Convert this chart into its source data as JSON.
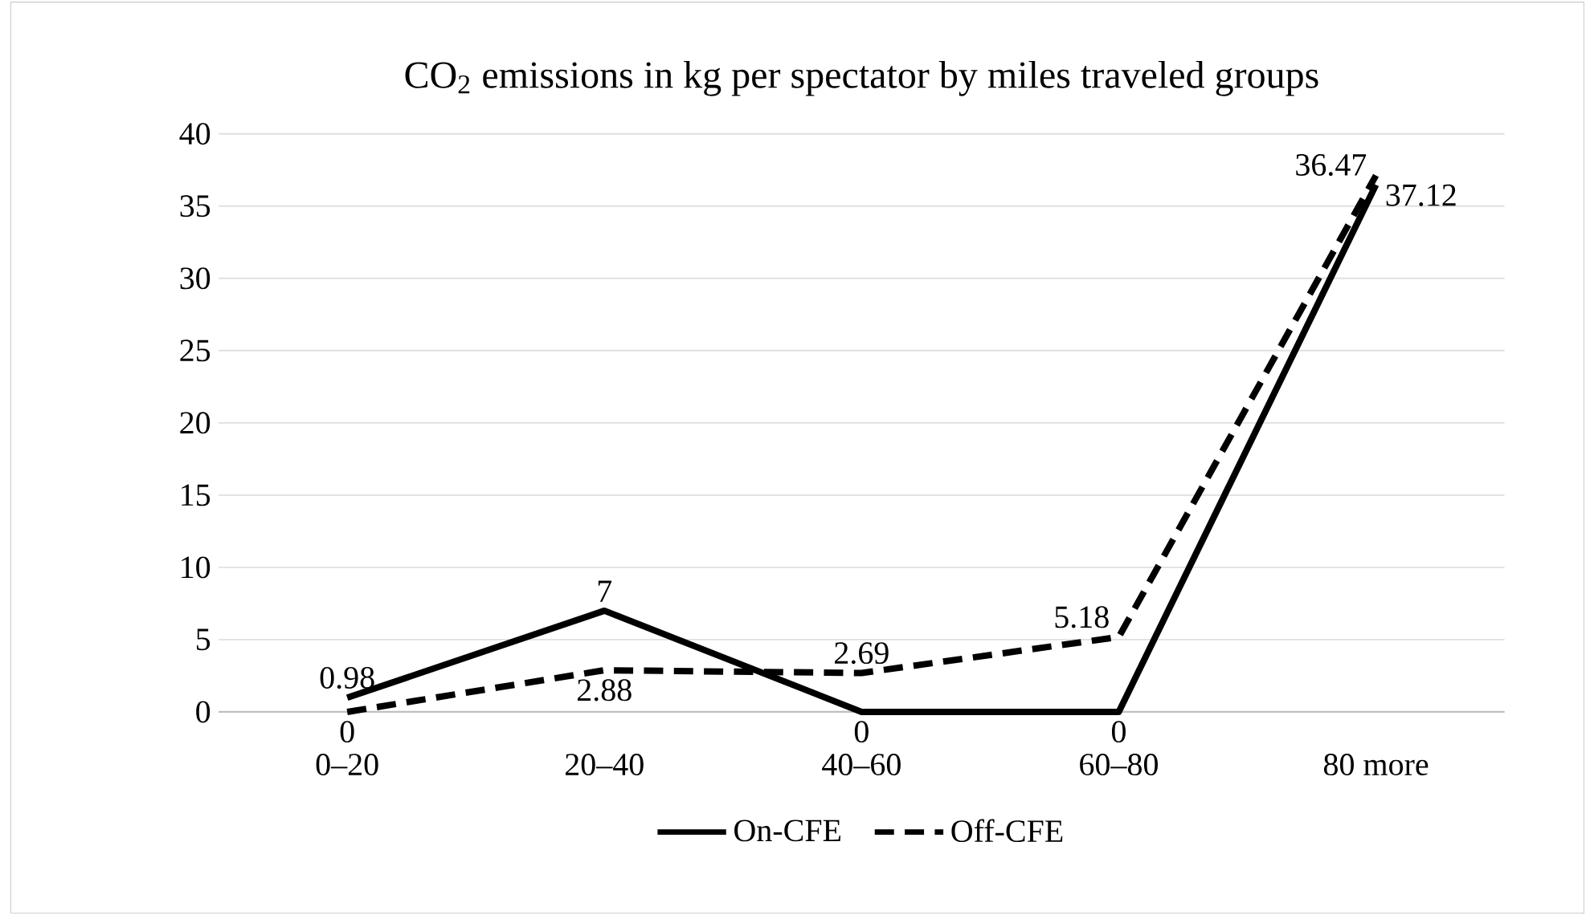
{
  "chart_data": {
    "type": "line",
    "title": "CO$_{2}$ emissions in kg per spectator by miles traveled groups",
    "categories": [
      "0–20",
      "20–40",
      "40–60",
      "60–80",
      "80 more"
    ],
    "series": [
      {
        "name": "On-CFE",
        "color": "#000000",
        "line_style": "solid",
        "values": [
          0.98,
          7,
          0,
          0,
          36.47
        ],
        "value_labels": [
          "0.98",
          "7",
          "0",
          "0",
          "36.47"
        ]
      },
      {
        "name": "Off-CFE",
        "color": "#000000",
        "line_style": "dashed",
        "values": [
          0,
          2.88,
          2.69,
          5.18,
          37.12
        ],
        "value_labels": [
          "0",
          "2.88",
          "2.69",
          "5.18",
          "37.12"
        ]
      }
    ],
    "ylim": [
      0,
      40
    ],
    "yticks": [
      0,
      5,
      10,
      15,
      20,
      25,
      30,
      35,
      40
    ],
    "grid": "y",
    "legend": "bottom",
    "marker": "none"
  }
}
